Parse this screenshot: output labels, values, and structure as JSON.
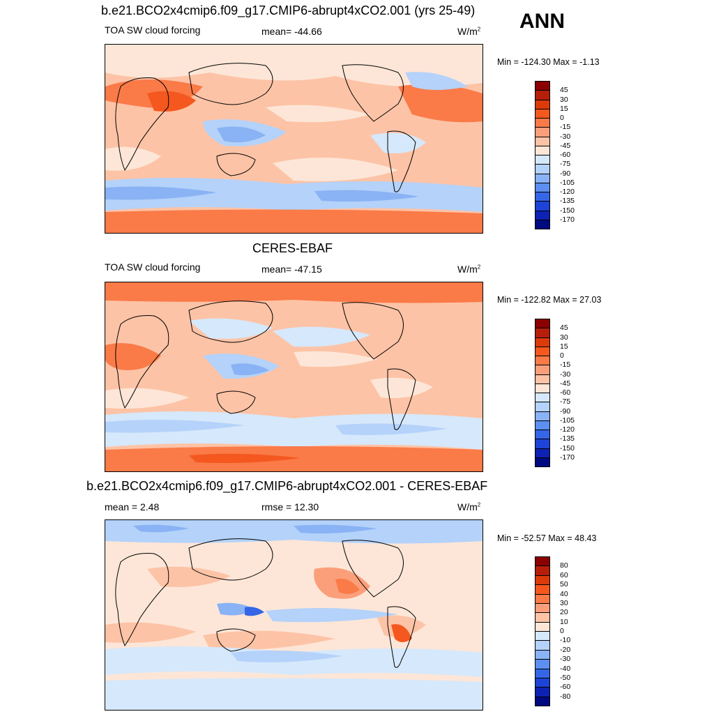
{
  "season": "ANN",
  "panels": [
    {
      "title": "b.e21.BCO2x4cmip6.f09_g17.CMIP6-abrupt4xCO2.001 (yrs 25-49)",
      "left_label": "TOA SW cloud forcing",
      "center_label": "mean= -44.66",
      "units": "W/m",
      "units_sup": "2",
      "minmax": "Min = -124.30 Max =  -1.13",
      "colorbar": {
        "ticks": [
          "45",
          "30",
          "15",
          "0",
          "-15",
          "-30",
          "-45",
          "-60",
          "-75",
          "-90",
          "-105",
          "-120",
          "-135",
          "-150",
          "-170"
        ],
        "colors": [
          "#8b0000",
          "#b51f0a",
          "#db3a0a",
          "#f4581f",
          "#fa7a48",
          "#fb9f7b",
          "#fdc3a6",
          "#fde6d7",
          "#d6e8fb",
          "#b4d2fa",
          "#8ab3f5",
          "#5c8ff0",
          "#3566e6",
          "#1d44d6",
          "#0d22b3",
          "#000a80"
        ]
      },
      "chart_data": {
        "type": "heatmap",
        "title": "b.e21.BCO2x4cmip6.f09_g17.CMIP6-abrupt4xCO2.001 (yrs 25-49)",
        "variable": "TOA SW cloud forcing",
        "units": "W/m2",
        "mean": -44.66,
        "min": -124.3,
        "max": -1.13,
        "levels": [
          45,
          30,
          15,
          0,
          -15,
          -30,
          -45,
          -60,
          -75,
          -90,
          -105,
          -120,
          -135,
          -150,
          -170
        ]
      }
    },
    {
      "title": "CERES-EBAF",
      "left_label": "TOA SW cloud forcing",
      "center_label": "mean= -47.15",
      "units": "W/m",
      "units_sup": "2",
      "minmax": "Min = -122.82 Max =  27.03",
      "colorbar": {
        "ticks": [
          "45",
          "30",
          "15",
          "0",
          "-15",
          "-30",
          "-45",
          "-60",
          "-75",
          "-90",
          "-105",
          "-120",
          "-135",
          "-150",
          "-170"
        ],
        "colors": [
          "#8b0000",
          "#b51f0a",
          "#db3a0a",
          "#f4581f",
          "#fa7a48",
          "#fb9f7b",
          "#fdc3a6",
          "#fde6d7",
          "#d6e8fb",
          "#b4d2fa",
          "#8ab3f5",
          "#5c8ff0",
          "#3566e6",
          "#1d44d6",
          "#0d22b3",
          "#000a80"
        ]
      },
      "chart_data": {
        "type": "heatmap",
        "title": "CERES-EBAF",
        "variable": "TOA SW cloud forcing",
        "units": "W/m2",
        "mean": -47.15,
        "min": -122.82,
        "max": 27.03,
        "levels": [
          45,
          30,
          15,
          0,
          -15,
          -30,
          -45,
          -60,
          -75,
          -90,
          -105,
          -120,
          -135,
          -150,
          -170
        ]
      }
    },
    {
      "title": "b.e21.BCO2x4cmip6.f09_g17.CMIP6-abrupt4xCO2.001 - CERES-EBAF",
      "left_label": "mean =   2.48",
      "center_label": "rmse =  12.30",
      "units": "W/m",
      "units_sup": "2",
      "minmax": "Min = -52.57 Max =  48.43",
      "colorbar": {
        "ticks": [
          "80",
          "60",
          "50",
          "40",
          "30",
          "20",
          "10",
          "0",
          "-10",
          "-20",
          "-30",
          "-40",
          "-50",
          "-60",
          "-80"
        ],
        "colors": [
          "#8b0000",
          "#b51f0a",
          "#db3a0a",
          "#f4581f",
          "#fa7a48",
          "#fb9f7b",
          "#fdc3a6",
          "#fde6d7",
          "#d6e8fb",
          "#b4d2fa",
          "#8ab3f5",
          "#5c8ff0",
          "#3566e6",
          "#1d44d6",
          "#0d22b3",
          "#000a80"
        ]
      },
      "chart_data": {
        "type": "heatmap",
        "title": "b.e21.BCO2x4cmip6.f09_g17.CMIP6-abrupt4xCO2.001 - CERES-EBAF",
        "units": "W/m2",
        "mean": 2.48,
        "rmse": 12.3,
        "min": -52.57,
        "max": 48.43,
        "levels": [
          80,
          60,
          50,
          40,
          30,
          20,
          10,
          0,
          -10,
          -20,
          -30,
          -40,
          -50,
          -60,
          -80
        ]
      }
    }
  ]
}
